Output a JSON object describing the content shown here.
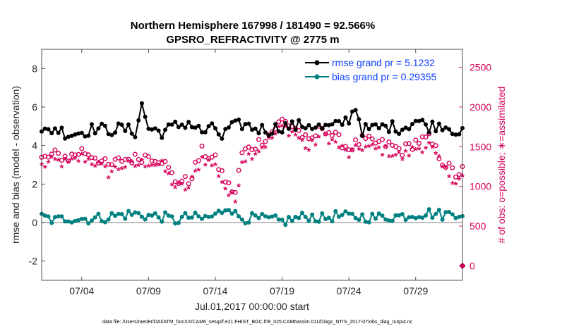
{
  "chart_data": {
    "type": "line",
    "title_line1": "Northern Hemisphere 167998 / 181490 = 92.566%",
    "title_line2": "GPSRO_REFRACTIVITY @ 2775 m",
    "xlabel": "Jul.01,2017 00:00:00 start",
    "ylabel_left": "rmse and bias (model - observation)",
    "ylabel_right": "# of obs: o=possible; ∗=assimilated",
    "x_range_days": [
      0.0,
      31.5
    ],
    "ylim_left": [
      -3,
      9
    ],
    "ylim_right": [
      -182,
      2726
    ],
    "x_ticks": [
      {
        "day": 3,
        "label": "07/04"
      },
      {
        "day": 8,
        "label": "07/09"
      },
      {
        "day": 13,
        "label": "07/14"
      },
      {
        "day": 18,
        "label": "07/19"
      },
      {
        "day": 23,
        "label": "07/24"
      },
      {
        "day": 28,
        "label": "07/29"
      }
    ],
    "y_ticks_left": [
      {
        "value": -2,
        "label": "-2"
      },
      {
        "value": 0,
        "label": "0"
      },
      {
        "value": 2,
        "label": "2"
      },
      {
        "value": 4,
        "label": "4"
      },
      {
        "value": 6,
        "label": "6"
      },
      {
        "value": 8,
        "label": "8"
      }
    ],
    "y_ticks_right": [
      {
        "value": 0,
        "label": "0"
      },
      {
        "value": 500,
        "label": "500"
      },
      {
        "value": 1000,
        "label": "1000"
      },
      {
        "value": 1500,
        "label": "1500"
      },
      {
        "value": 2000,
        "label": "2000"
      },
      {
        "value": 2500,
        "label": "2500"
      }
    ],
    "legend": [
      {
        "name": "rmse grand pr = 5.1232",
        "color": "#000000"
      },
      {
        "name": "bias grand pr = 0.29355",
        "color": "#008080"
      }
    ],
    "footnote": "data file: /Users/raeder/DAI/ATM_forcXX/CAM6_setup/f.e21.FHIST_BGC.f09_025.CAM6assim.011/Diags_NTrS_2017-07/obs_diag_output.nc",
    "time_step_days": 0.25,
    "series": [
      {
        "name": "rmse",
        "axis": "left",
        "color": "#000000",
        "key_values": [
          [
            0,
            4.6
          ],
          [
            1,
            4.9
          ],
          [
            2,
            4.6
          ],
          [
            3,
            4.7
          ],
          [
            4,
            4.9
          ],
          [
            5,
            4.8
          ],
          [
            6,
            4.9
          ],
          [
            7,
            4.7
          ],
          [
            7.5,
            6.1
          ],
          [
            8,
            4.9
          ],
          [
            9,
            4.7
          ],
          [
            10,
            5.0
          ],
          [
            11,
            5.2
          ],
          [
            12,
            4.7
          ],
          [
            13,
            4.9
          ],
          [
            13.5,
            4.4
          ],
          [
            14,
            4.9
          ],
          [
            15,
            5.1
          ],
          [
            16,
            4.9
          ],
          [
            17,
            4.8
          ],
          [
            18,
            5.0
          ],
          [
            19,
            5.0
          ],
          [
            20,
            5.1
          ],
          [
            21,
            4.9
          ],
          [
            22,
            5.0
          ],
          [
            23,
            5.4
          ],
          [
            23.5,
            6.0
          ],
          [
            24,
            4.8
          ],
          [
            25,
            4.9
          ],
          [
            26,
            5.0
          ],
          [
            27,
            4.9
          ],
          [
            28,
            5.3
          ],
          [
            29,
            5.0
          ],
          [
            30,
            5.1
          ],
          [
            31,
            4.8
          ],
          [
            31.5,
            4.6
          ]
        ],
        "jitter": 0.32
      },
      {
        "name": "bias",
        "axis": "left",
        "color": "#008080",
        "key_values": [
          [
            0,
            0.3
          ],
          [
            1,
            0.1
          ],
          [
            2,
            0.25
          ],
          [
            3,
            0.2
          ],
          [
            4,
            0.2
          ],
          [
            5,
            0.3
          ],
          [
            6,
            0.4
          ],
          [
            7,
            0.45
          ],
          [
            8,
            0.35
          ],
          [
            9,
            0.3
          ],
          [
            10,
            0.1
          ],
          [
            11,
            0.3
          ],
          [
            12,
            0.2
          ],
          [
            13,
            0.35
          ],
          [
            14,
            0.9
          ],
          [
            14.5,
            0.4
          ],
          [
            15,
            0.25
          ],
          [
            16,
            0.2
          ],
          [
            17,
            0.15
          ],
          [
            18,
            0.05
          ],
          [
            19,
            0.2
          ],
          [
            20,
            0.35
          ],
          [
            21,
            0.2
          ],
          [
            22,
            0.35
          ],
          [
            23,
            0.3
          ],
          [
            24,
            0.3
          ],
          [
            25,
            0.25
          ],
          [
            26,
            0.3
          ],
          [
            27,
            0.35
          ],
          [
            28,
            0.45
          ],
          [
            29,
            0.5
          ],
          [
            30,
            0.4
          ],
          [
            31,
            0.5
          ]
        ],
        "jitter": 0.28
      },
      {
        "name": "possible",
        "axis": "right",
        "color": "#d6005a",
        "marker": "o",
        "key_values": [
          [
            0,
            1340
          ],
          [
            1,
            1400
          ],
          [
            2,
            1360
          ],
          [
            3,
            1450
          ],
          [
            4,
            1380
          ],
          [
            5,
            1250
          ],
          [
            6,
            1340
          ],
          [
            7,
            1350
          ],
          [
            8,
            1390
          ],
          [
            9,
            1340
          ],
          [
            10,
            1080
          ],
          [
            11,
            1060
          ],
          [
            12,
            1440
          ],
          [
            13,
            1330
          ],
          [
            14,
            1000
          ],
          [
            14.5,
            920
          ],
          [
            15,
            1420
          ],
          [
            16,
            1520
          ],
          [
            17,
            1650
          ],
          [
            18,
            1830
          ],
          [
            19,
            1740
          ],
          [
            20,
            1540
          ],
          [
            21,
            1760
          ],
          [
            22,
            1620
          ],
          [
            23,
            1480
          ],
          [
            24,
            1580
          ],
          [
            25,
            1550
          ],
          [
            26,
            1520
          ],
          [
            27,
            1450
          ],
          [
            28,
            1560
          ],
          [
            29,
            1600
          ],
          [
            30,
            1320
          ],
          [
            31,
            1150
          ],
          [
            31.5,
            1200
          ]
        ],
        "jitter": 70
      },
      {
        "name": "assimilated",
        "axis": "right",
        "color": "#d6005a",
        "marker": "*",
        "key_values": [
          [
            0,
            1240
          ],
          [
            1,
            1300
          ],
          [
            2,
            1260
          ],
          [
            3,
            1350
          ],
          [
            4,
            1280
          ],
          [
            5,
            1150
          ],
          [
            6,
            1240
          ],
          [
            7,
            1250
          ],
          [
            8,
            1290
          ],
          [
            9,
            1240
          ],
          [
            10,
            980
          ],
          [
            11,
            960
          ],
          [
            12,
            1340
          ],
          [
            13,
            1230
          ],
          [
            14,
            880
          ],
          [
            14.5,
            800
          ],
          [
            15,
            1320
          ],
          [
            16,
            1420
          ],
          [
            17,
            1550
          ],
          [
            18,
            1730
          ],
          [
            19,
            1640
          ],
          [
            20,
            1440
          ],
          [
            21,
            1660
          ],
          [
            22,
            1520
          ],
          [
            23,
            1380
          ],
          [
            24,
            1480
          ],
          [
            25,
            1450
          ],
          [
            26,
            1420
          ],
          [
            27,
            1350
          ],
          [
            28,
            1460
          ],
          [
            29,
            1500
          ],
          [
            30,
            1220
          ],
          [
            31,
            1050
          ],
          [
            31.5,
            1100
          ]
        ],
        "jitter": 70
      }
    ],
    "special_points": [
      {
        "name": "zero-count-marker",
        "axis": "right",
        "day": 31.5,
        "value": 0,
        "color": "#d6005a"
      }
    ]
  }
}
